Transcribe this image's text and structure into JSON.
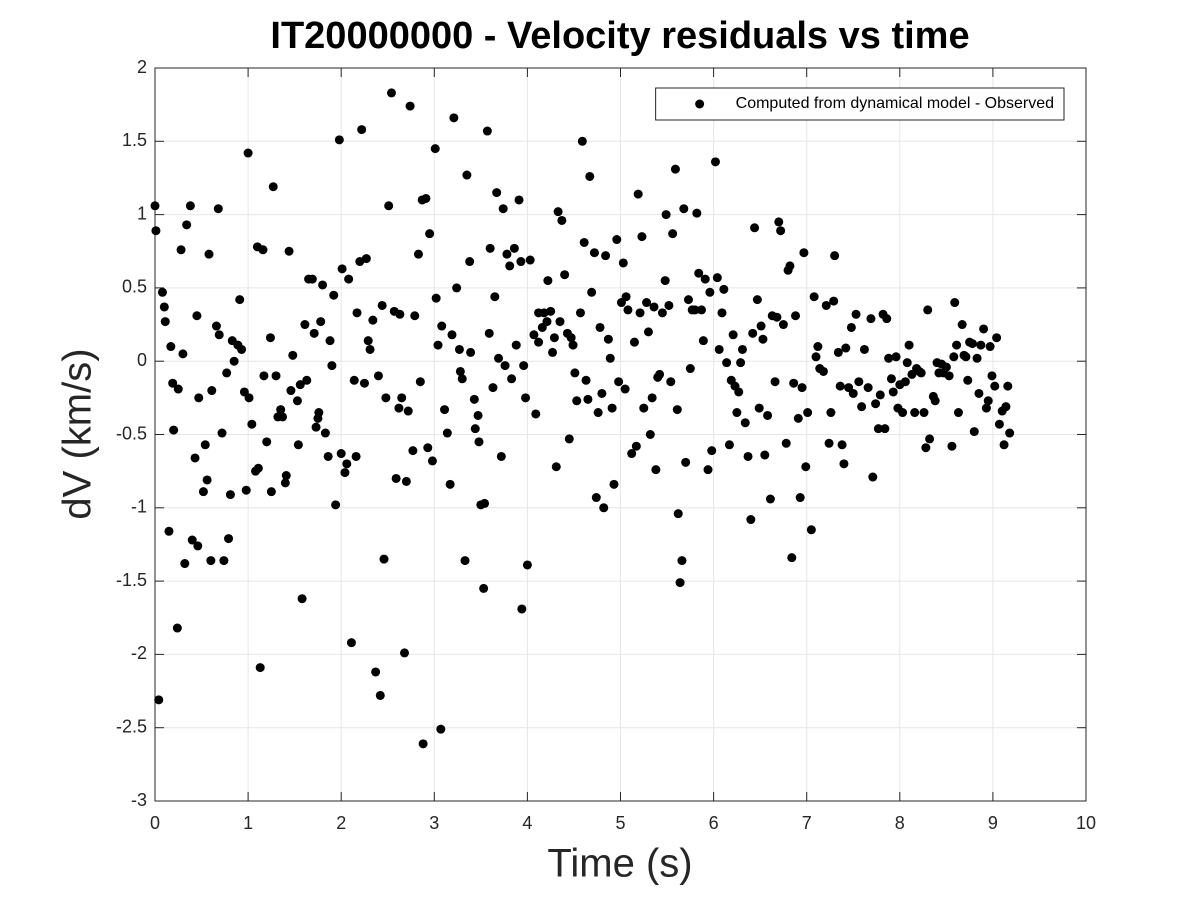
{
  "chart_data": {
    "type": "scatter",
    "title": "IT20000000 - Velocity residuals vs time",
    "x_label": "Time (s)",
    "y_label": "dV (km/s)",
    "xlim": [
      0,
      10
    ],
    "ylim": [
      -3,
      2
    ],
    "xticks": [
      0,
      1,
      2,
      3,
      4,
      5,
      6,
      7,
      8,
      9,
      10
    ],
    "yticks": [
      -3,
      -2.5,
      -2,
      -1.5,
      -1,
      -0.5,
      0,
      0.5,
      1,
      1.5,
      2
    ],
    "grid": true,
    "legend": "northeast",
    "x": [
      0.0,
      0.01,
      0.04,
      0.08,
      0.1,
      0.11,
      0.15,
      0.17,
      0.19,
      0.2,
      0.24,
      0.25,
      0.28,
      0.3,
      0.32,
      0.34,
      0.38,
      0.4,
      0.43,
      0.45,
      0.47,
      0.46,
      0.52,
      0.54,
      0.56,
      0.58,
      0.6,
      0.61,
      0.66,
      0.68,
      0.69,
      0.72,
      0.74,
      0.77,
      0.79,
      0.81,
      0.83,
      0.85,
      0.89,
      0.91,
      0.93,
      0.96,
      0.98,
      1.0,
      1.01,
      1.04,
      1.08,
      1.1,
      1.11,
      1.13,
      1.16,
      1.17,
      1.2,
      1.24,
      1.25,
      1.27,
      1.3,
      1.32,
      1.35,
      1.37,
      1.4,
      1.41,
      1.44,
      1.46,
      1.48,
      1.53,
      1.54,
      1.56,
      1.58,
      1.61,
      1.63,
      1.65,
      1.69,
      1.71,
      1.73,
      1.75,
      1.76,
      1.78,
      1.8,
      1.83,
      1.86,
      1.88,
      1.9,
      1.92,
      1.94,
      1.98,
      2.0,
      2.01,
      2.04,
      2.06,
      2.08,
      2.11,
      2.14,
      2.16,
      2.17,
      2.2,
      2.22,
      2.25,
      2.27,
      2.29,
      2.31,
      2.34,
      2.37,
      2.4,
      2.42,
      2.44,
      2.46,
      2.48,
      2.51,
      2.54,
      2.57,
      2.59,
      2.62,
      2.63,
      2.65,
      2.68,
      2.7,
      2.72,
      2.74,
      2.77,
      2.79,
      2.83,
      2.85,
      2.87,
      2.88,
      2.91,
      2.93,
      2.95,
      2.98,
      3.01,
      3.02,
      3.04,
      3.07,
      3.08,
      3.11,
      3.14,
      3.17,
      3.19,
      3.21,
      3.24,
      3.27,
      3.28,
      3.3,
      3.33,
      3.35,
      3.38,
      3.39,
      3.43,
      3.44,
      3.47,
      3.48,
      3.5,
      3.53,
      3.54,
      3.57,
      3.59,
      3.6,
      3.63,
      3.65,
      3.67,
      3.69,
      3.72,
      3.74,
      3.76,
      3.78,
      3.81,
      3.83,
      3.86,
      3.88,
      3.91,
      3.93,
      3.94,
      3.96,
      3.98,
      4.0,
      4.03,
      4.07,
      4.09,
      4.12,
      4.12,
      4.16,
      4.18,
      4.21,
      4.22,
      4.25,
      4.27,
      4.29,
      4.31,
      4.33,
      4.35,
      4.37,
      4.4,
      4.43,
      4.45,
      4.47,
      4.49,
      4.51,
      4.53,
      4.57,
      4.59,
      4.61,
      4.63,
      4.65,
      4.67,
      4.69,
      4.72,
      4.74,
      4.76,
      4.78,
      4.8,
      4.82,
      4.84,
      4.87,
      4.89,
      4.91,
      4.93,
      4.96,
      4.98,
      5.01,
      5.03,
      5.05,
      5.06,
      5.08,
      5.12,
      5.15,
      5.17,
      5.19,
      5.21,
      5.23,
      5.25,
      5.28,
      5.3,
      5.32,
      5.34,
      5.36,
      5.38,
      5.4,
      5.42,
      5.45,
      5.48,
      5.49,
      5.52,
      5.54,
      5.56,
      5.59,
      5.61,
      5.62,
      5.64,
      5.66,
      5.68,
      5.7,
      5.73,
      5.75,
      5.77,
      5.8,
      5.82,
      5.84,
      5.87,
      5.89,
      5.91,
      5.94,
      5.96,
      5.98,
      6.02,
      6.04,
      6.06,
      6.09,
      6.11,
      6.14,
      6.17,
      6.19,
      6.21,
      6.23,
      6.25,
      6.27,
      6.29,
      6.31,
      6.34,
      6.37,
      6.4,
      6.42,
      6.44,
      6.47,
      6.49,
      6.51,
      6.53,
      6.55,
      6.58,
      6.61,
      6.63,
      6.66,
      6.68,
      6.7,
      6.72,
      6.75,
      6.78,
      6.8,
      6.82,
      6.84,
      6.86,
      6.88,
      6.91,
      6.93,
      6.95,
      6.97,
      6.99,
      7.01,
      7.05,
      7.08,
      7.1,
      7.12,
      7.14,
      7.18,
      7.21,
      7.24,
      7.26,
      7.29,
      7.3,
      7.34,
      7.36,
      7.38,
      7.4,
      7.42,
      7.45,
      7.48,
      7.5,
      7.53,
      7.56,
      7.59,
      7.62,
      7.66,
      7.69,
      7.71,
      7.74,
      7.77,
      7.79,
      7.82,
      7.84,
      7.86,
      7.88,
      7.91,
      7.93,
      7.96,
      7.98,
      8.0,
      8.03,
      8.06,
      8.08,
      8.1,
      8.13,
      8.16,
      8.18,
      8.21,
      8.23,
      8.26,
      8.28,
      8.3,
      8.32,
      8.36,
      8.38,
      8.4,
      8.42,
      8.45,
      8.47,
      8.5,
      8.53,
      8.56,
      8.58,
      8.59,
      8.61,
      8.63,
      8.67,
      8.69,
      8.71,
      8.73,
      8.75,
      8.78,
      8.8,
      8.83,
      8.85,
      8.87,
      8.9,
      8.93,
      8.95,
      8.97,
      8.99,
      9.02,
      9.04,
      9.07,
      9.1,
      9.12,
      9.14,
      9.16,
      9.18
    ],
    "series": [
      {
        "name": "Computed from dynamical model - Observed",
        "color": "#000000",
        "values": [
          1.06,
          0.89,
          -2.31,
          0.47,
          0.37,
          0.27,
          -1.16,
          0.1,
          -0.15,
          -0.47,
          -1.82,
          -0.19,
          0.76,
          0.05,
          -1.38,
          0.93,
          1.06,
          -1.22,
          -0.66,
          0.31,
          -0.25,
          -1.26,
          -0.89,
          -0.57,
          -0.81,
          0.73,
          -1.36,
          -0.2,
          0.24,
          1.04,
          0.18,
          -0.49,
          -1.36,
          -0.08,
          -1.21,
          -0.91,
          0.14,
          0.0,
          0.11,
          0.42,
          0.08,
          -0.21,
          -0.88,
          1.42,
          -0.25,
          -0.43,
          -0.75,
          0.78,
          -0.73,
          -2.09,
          0.76,
          -0.1,
          -0.55,
          0.16,
          -0.89,
          1.19,
          -0.1,
          -0.38,
          -0.33,
          -0.38,
          -0.83,
          -0.78,
          0.75,
          -0.2,
          0.04,
          -0.27,
          -0.57,
          -0.16,
          -1.62,
          0.25,
          -0.13,
          0.56,
          0.56,
          0.19,
          -0.45,
          -0.39,
          -0.35,
          0.27,
          0.52,
          -0.49,
          -0.65,
          0.14,
          -0.03,
          0.45,
          -0.98,
          1.51,
          -0.63,
          0.63,
          -0.76,
          -0.7,
          0.56,
          -1.92,
          -0.13,
          -0.65,
          0.33,
          0.68,
          1.58,
          -0.15,
          0.7,
          0.14,
          0.08,
          0.28,
          -2.12,
          -0.1,
          -2.28,
          0.38,
          -1.35,
          -0.25,
          1.06,
          1.83,
          0.34,
          -0.8,
          -0.32,
          0.32,
          -0.25,
          -1.99,
          -0.82,
          -0.34,
          1.74,
          -0.61,
          0.31,
          0.73,
          -0.14,
          1.1,
          -2.61,
          1.11,
          -0.59,
          0.87,
          -0.68,
          1.45,
          0.43,
          0.11,
          -2.51,
          0.24,
          -0.33,
          -0.49,
          -0.84,
          0.18,
          1.66,
          0.5,
          0.08,
          -0.07,
          -0.12,
          -1.36,
          1.27,
          0.68,
          0.06,
          -0.26,
          -0.46,
          -0.37,
          -0.55,
          -0.98,
          -1.55,
          -0.97,
          1.57,
          0.19,
          0.77,
          -0.18,
          0.44,
          1.15,
          0.02,
          -0.65,
          1.04,
          -0.03,
          0.73,
          0.65,
          -0.12,
          0.77,
          0.11,
          1.1,
          0.68,
          -1.69,
          -0.03,
          -0.25,
          -1.39,
          0.69,
          0.18,
          -0.36,
          0.33,
          0.13,
          0.23,
          0.33,
          0.27,
          0.55,
          0.34,
          0.06,
          0.16,
          -0.72,
          1.02,
          0.27,
          0.96,
          0.59,
          0.19,
          -0.53,
          0.16,
          0.11,
          -0.08,
          -0.27,
          0.33,
          1.5,
          0.81,
          -0.13,
          -0.26,
          1.26,
          0.47,
          0.74,
          -0.93,
          -0.35,
          0.23,
          -0.22,
          -1.0,
          0.72,
          0.15,
          0.02,
          -0.32,
          -0.84,
          0.83,
          -0.14,
          0.4,
          0.67,
          -0.19,
          0.44,
          0.35,
          -0.63,
          0.13,
          -0.58,
          1.14,
          0.33,
          0.85,
          -0.32,
          0.4,
          0.2,
          -0.5,
          -0.25,
          0.37,
          -0.74,
          -0.11,
          -0.09,
          0.33,
          0.55,
          1.0,
          0.38,
          -0.14,
          0.87,
          1.31,
          -0.33,
          -1.04,
          -1.51,
          -1.36,
          1.04,
          -0.69,
          0.42,
          -0.05,
          0.35,
          0.35,
          1.01,
          0.6,
          0.35,
          0.14,
          0.56,
          -0.74,
          0.47,
          -0.61,
          1.36,
          0.57,
          0.08,
          0.33,
          0.49,
          -0.01,
          -0.57,
          -0.13,
          0.18,
          -0.17,
          -0.35,
          -0.21,
          -0.01,
          0.08,
          -0.42,
          -0.65,
          -1.08,
          0.19,
          0.91,
          0.42,
          -0.32,
          0.24,
          0.15,
          -0.64,
          -0.37,
          -0.94,
          0.31,
          -0.14,
          0.3,
          0.95,
          0.89,
          0.25,
          -0.56,
          0.62,
          0.65,
          -1.34,
          -0.15,
          0.31,
          -0.39,
          -0.93,
          -0.18,
          0.74,
          -0.72,
          -0.35,
          -1.15,
          0.44,
          0.03,
          0.1,
          -0.05,
          -0.07,
          0.38,
          -0.56,
          -0.35,
          0.41,
          0.72,
          0.06,
          -0.17,
          -0.57,
          -0.7,
          0.09,
          -0.18,
          0.23,
          -0.22,
          0.32,
          -0.14,
          -0.31,
          0.08,
          -0.18,
          0.29,
          -0.79,
          -0.29,
          -0.46,
          -0.23,
          0.32,
          -0.46,
          0.29,
          0.02,
          -0.12,
          -0.21,
          0.03,
          -0.32,
          -0.16,
          -0.35,
          -0.14,
          -0.01,
          0.11,
          -0.09,
          -0.35,
          -0.05,
          -0.07,
          -0.08,
          -0.35,
          -0.59,
          0.35,
          -0.53,
          -0.24,
          -0.27,
          -0.01,
          -0.08,
          -0.02,
          -0.08,
          -0.04,
          -0.1,
          -0.58,
          0.03,
          0.4,
          0.11,
          -0.35,
          0.25,
          0.04,
          0.03,
          -0.13,
          0.13,
          0.12,
          -0.48,
          0.02,
          -0.22,
          0.11,
          0.22,
          -0.32,
          -0.27,
          0.1,
          -0.1,
          -0.17,
          0.16,
          -0.43,
          -0.34,
          -0.57,
          -0.31,
          -0.17,
          -0.49
        ]
      }
    ]
  }
}
